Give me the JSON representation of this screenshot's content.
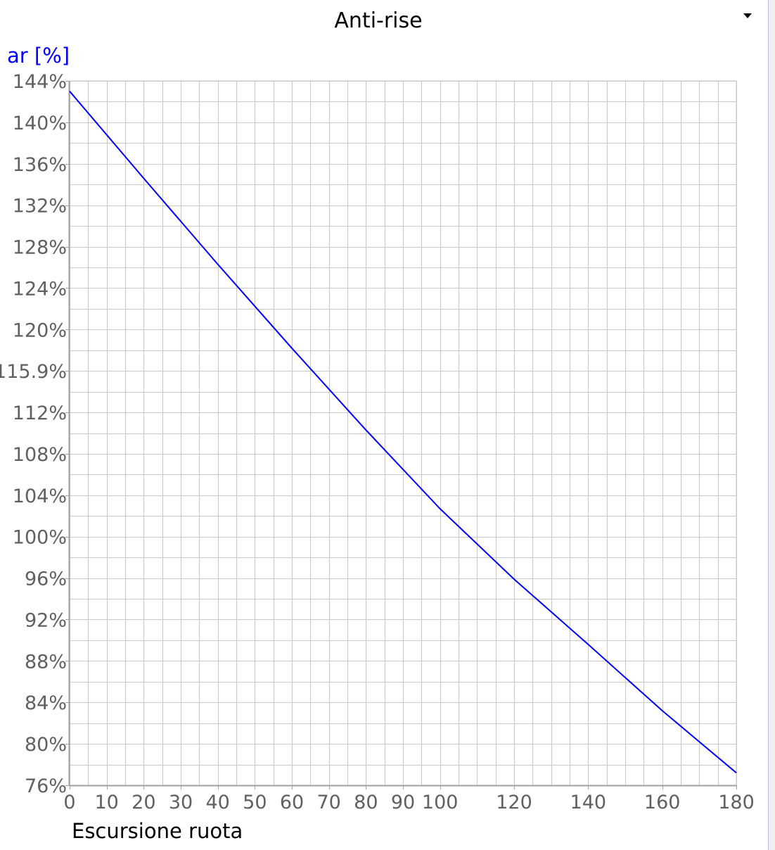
{
  "header": {
    "title": "Anti-rise",
    "menu_icon": "chevron-down-icon"
  },
  "colors": {
    "series": "#0000ff",
    "grid": "#c8c8c8",
    "axis": "#a0a0a0",
    "tick_text": "#606060"
  },
  "chart_data": {
    "type": "line",
    "title": "Anti-rise",
    "xlabel": "Escursione ruota",
    "ylabel": "ar [%]",
    "xlim": [
      0,
      180
    ],
    "ylim": [
      76,
      144
    ],
    "grid": true,
    "x_ticks": [
      "0",
      "10",
      "20",
      "30",
      "40",
      "50",
      "60",
      "70",
      "80",
      "90",
      "100",
      "120",
      "140",
      "160",
      "180"
    ],
    "y_ticks": [
      "76%",
      "80%",
      "84%",
      "88%",
      "92%",
      "96%",
      "100%",
      "104%",
      "108%",
      "112%",
      "115.9%",
      "120%",
      "124%",
      "128%",
      "132%",
      "136%",
      "140%",
      "144%"
    ],
    "series": [
      {
        "x": [
          0,
          20,
          40,
          60,
          80,
          100,
          120,
          140,
          160,
          180
        ],
        "y": [
          143.0,
          134.6,
          126.3,
          118.2,
          110.3,
          102.7,
          95.9,
          89.6,
          83.2,
          77.2
        ]
      }
    ]
  }
}
